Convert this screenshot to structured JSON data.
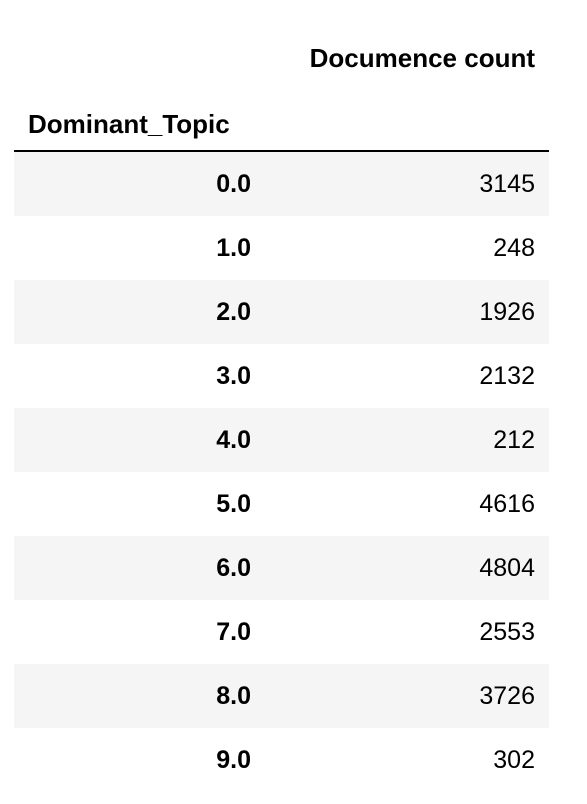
{
  "table": {
    "column_header": "Documence count",
    "index_name": "Dominant_Topic",
    "rows": [
      {
        "index": "0.0",
        "value": "3145"
      },
      {
        "index": "1.0",
        "value": "248"
      },
      {
        "index": "2.0",
        "value": "1926"
      },
      {
        "index": "3.0",
        "value": "2132"
      },
      {
        "index": "4.0",
        "value": "212"
      },
      {
        "index": "5.0",
        "value": "4616"
      },
      {
        "index": "6.0",
        "value": "4804"
      },
      {
        "index": "7.0",
        "value": "2553"
      },
      {
        "index": "8.0",
        "value": "3726"
      },
      {
        "index": "9.0",
        "value": "302"
      }
    ]
  }
}
